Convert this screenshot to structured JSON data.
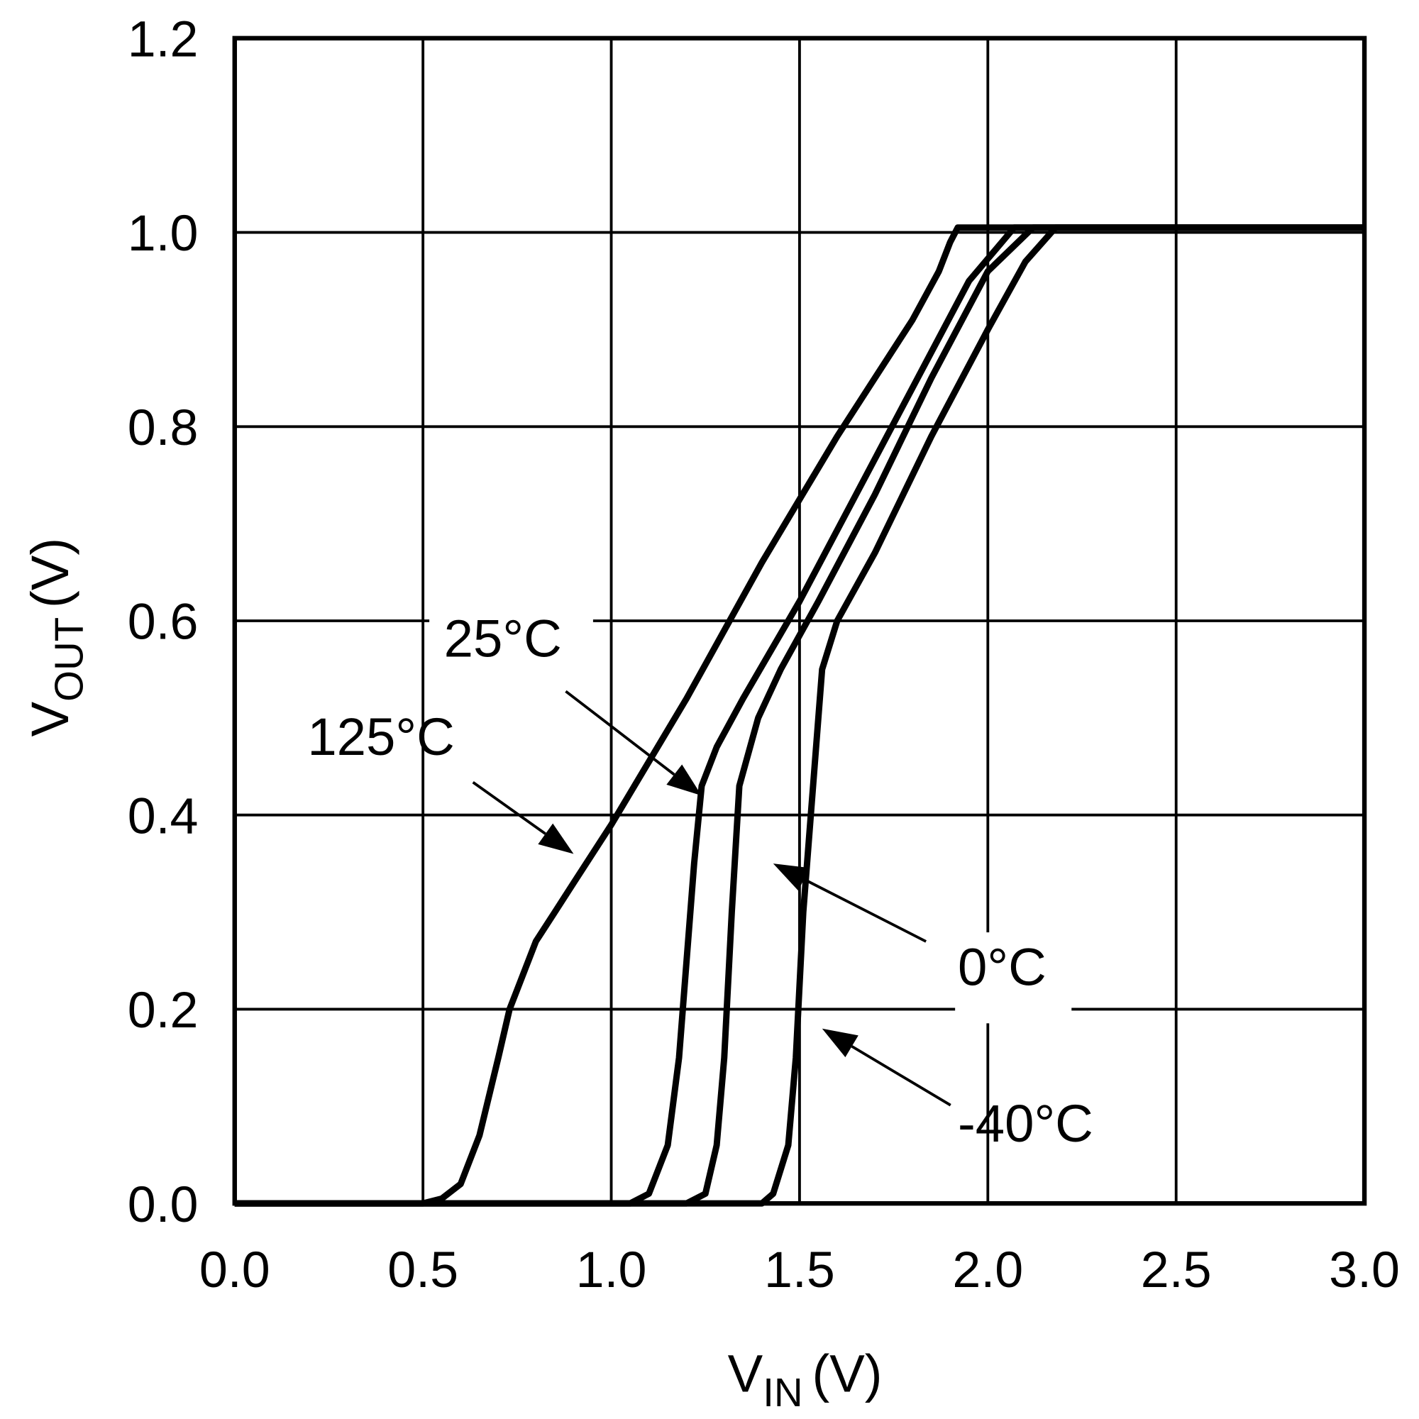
{
  "chart_data": {
    "type": "line",
    "xlabel": {
      "main": "V",
      "sub": "IN",
      "unit": "(V)"
    },
    "ylabel": {
      "main": "V",
      "sub": "OUT",
      "unit": "(V)"
    },
    "xlim": [
      0,
      3.0
    ],
    "ylim": [
      0,
      1.2
    ],
    "grid": true,
    "xticks": [
      "0.0",
      "0.5",
      "1.0",
      "1.5",
      "2.0",
      "2.5",
      "3.0"
    ],
    "yticks": [
      "0.0",
      "0.2",
      "0.4",
      "0.6",
      "0.8",
      "1.0",
      "1.2"
    ],
    "line_color": "#000000",
    "series": [
      {
        "name": "125°C",
        "x": [
          0,
          0.5,
          0.55,
          0.6,
          0.65,
          0.7,
          0.73,
          0.75,
          0.8,
          0.85,
          0.9,
          1.0,
          1.2,
          1.4,
          1.6,
          1.7,
          1.8,
          1.87,
          1.9,
          1.92,
          3.0
        ],
        "y": [
          0,
          0,
          0.005,
          0.02,
          0.07,
          0.15,
          0.2,
          0.22,
          0.27,
          0.3,
          0.33,
          0.39,
          0.52,
          0.66,
          0.79,
          0.85,
          0.91,
          0.96,
          0.99,
          1.005,
          1.005
        ]
      },
      {
        "name": "25°C",
        "x": [
          0,
          1.05,
          1.1,
          1.15,
          1.18,
          1.2,
          1.22,
          1.24,
          1.28,
          1.35,
          1.5,
          1.65,
          1.8,
          1.95,
          2.07,
          3.0
        ],
        "y": [
          0,
          0,
          0.01,
          0.06,
          0.15,
          0.25,
          0.35,
          0.43,
          0.47,
          0.52,
          0.62,
          0.73,
          0.84,
          0.95,
          1.005,
          1.005
        ]
      },
      {
        "name": "0°C",
        "x": [
          0,
          1.2,
          1.25,
          1.28,
          1.3,
          1.32,
          1.34,
          1.39,
          1.45,
          1.55,
          1.7,
          1.85,
          2.0,
          2.12,
          3.0
        ],
        "y": [
          0,
          0,
          0.01,
          0.06,
          0.15,
          0.3,
          0.43,
          0.5,
          0.55,
          0.62,
          0.73,
          0.85,
          0.96,
          1.005,
          1.005
        ]
      },
      {
        "name": "-40°C",
        "x": [
          0,
          1.4,
          1.43,
          1.47,
          1.49,
          1.51,
          1.56,
          1.6,
          1.7,
          1.85,
          2.0,
          2.1,
          2.18,
          3.0
        ],
        "y": [
          0,
          0,
          0.01,
          0.06,
          0.15,
          0.3,
          0.55,
          0.6,
          0.67,
          0.79,
          0.9,
          0.97,
          1.005,
          1.005
        ]
      }
    ],
    "annotations": [
      {
        "text": "25°C",
        "arrow_to": [
          1.24,
          0.42
        ]
      },
      {
        "text": "125°C",
        "arrow_to": [
          0.9,
          0.36
        ]
      },
      {
        "text": "0°C",
        "arrow_to": [
          1.43,
          0.35
        ]
      },
      {
        "text": "-40°C",
        "arrow_to": [
          1.56,
          0.18
        ]
      }
    ]
  }
}
